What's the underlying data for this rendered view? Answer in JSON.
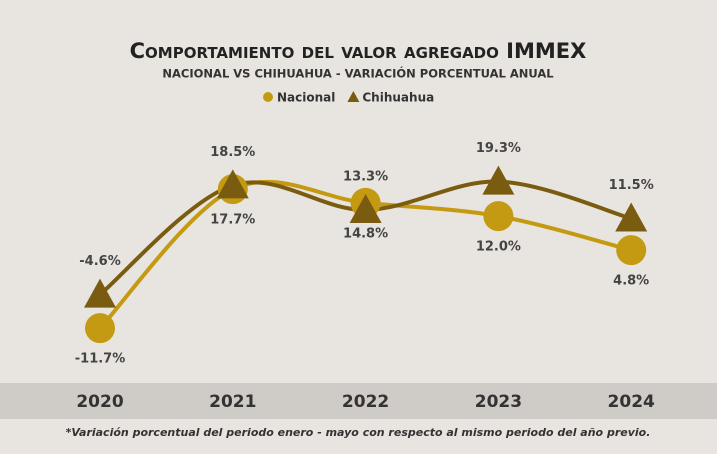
{
  "chart_data": {
    "type": "line",
    "title": "Comportamiento del valor agregado IMMEX",
    "subtitle": "NACIONAL VS CHIHUAHUA - VARIACIÓN PORCENTUAL ANUAL",
    "categories": [
      "2020",
      "2021",
      "2022",
      "2023",
      "2024"
    ],
    "series": [
      {
        "name": "Nacional",
        "color": "#c49a12",
        "marker": "circle",
        "values": [
          -11.7,
          17.7,
          14.8,
          12.0,
          4.8
        ],
        "value_labels": [
          "-11.7%",
          "17.7%",
          "14.8%",
          "12.0%",
          "4.8%"
        ]
      },
      {
        "name": "Chihuahua",
        "color": "#7a5c10",
        "marker": "triangle",
        "values": [
          -4.6,
          18.5,
          13.3,
          19.3,
          11.5
        ],
        "value_labels": [
          "-4.6%",
          "18.5%",
          "13.3%",
          "19.3%",
          "11.5%"
        ]
      }
    ],
    "ylim": [
      -25,
      30
    ],
    "footnote": "*Variación porcentual del periodo enero - mayo con respecto al mismo periodo del año previo."
  }
}
